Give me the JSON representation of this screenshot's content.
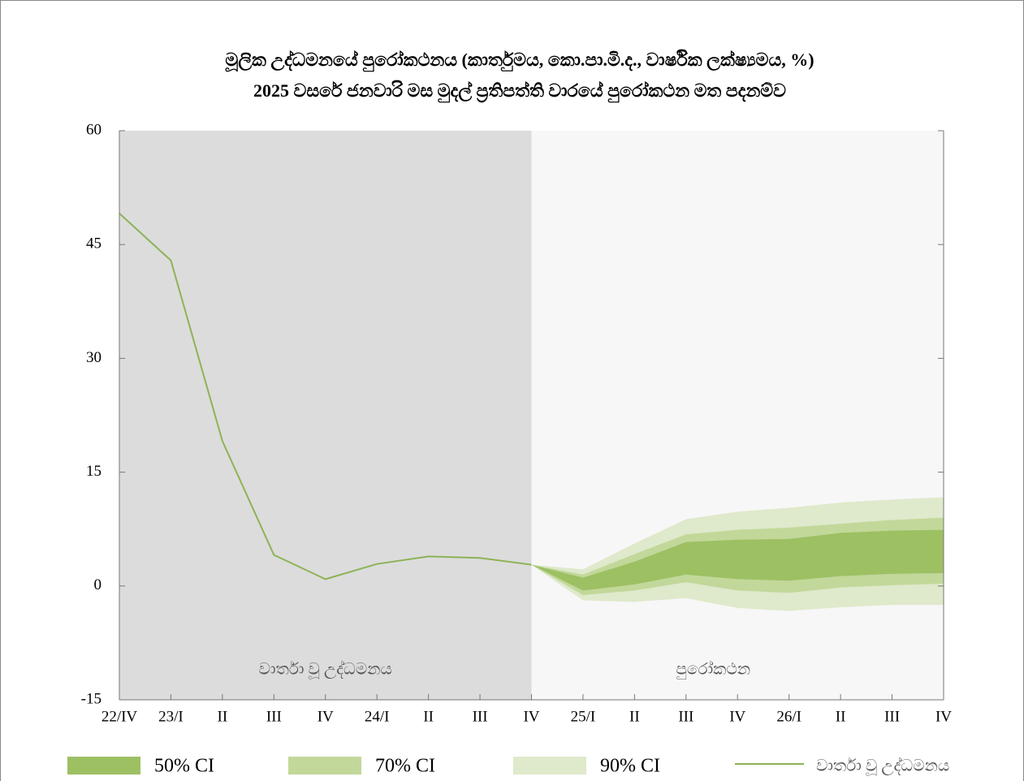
{
  "chart_data": {
    "type": "fan",
    "title": [
      "මූලික උද්ධමනයේ පුරෝකථනය (කාර්තුමය, කො.පා.මි.ද., වාර්ෂික ලක්ෂ්‍යමය, %)",
      "2025 වසරේ ජනවාරි මස මුදල් ප්‍රතිපත්ති වාරයේ පුරෝකථන මත පදනම්ව"
    ],
    "annotations": [
      "වාර්තා වූ උද්ධමනය",
      "පුරෝකථන"
    ],
    "categories": [
      "22/IV",
      "23/I",
      "II",
      "III",
      "IV",
      "24/I",
      "II",
      "III",
      "IV",
      "25/I",
      "II",
      "III",
      "IV",
      "26/I",
      "II",
      "III",
      "IV"
    ],
    "ylim": [
      -15,
      60
    ],
    "yticks": [
      -15,
      0,
      15,
      30,
      45,
      60
    ],
    "bands": [
      {
        "name": "50% CI",
        "color": "#9dc063",
        "lower": [
          null,
          null,
          null,
          null,
          null,
          null,
          null,
          null,
          2.8,
          -0.6,
          0.2,
          1.5,
          0.9,
          0.7,
          1.3,
          1.6,
          1.7
        ],
        "upper": [
          null,
          null,
          null,
          null,
          null,
          null,
          null,
          null,
          2.8,
          1.1,
          3.2,
          5.8,
          6.1,
          6.2,
          7.0,
          7.3,
          7.4
        ]
      },
      {
        "name": "70% CI",
        "color": "#c2d89a",
        "lower": [
          null,
          null,
          null,
          null,
          null,
          null,
          null,
          null,
          2.8,
          -1.2,
          -0.6,
          0.5,
          -0.6,
          -0.9,
          -0.2,
          0.1,
          0.3
        ],
        "upper": [
          null,
          null,
          null,
          null,
          null,
          null,
          null,
          null,
          2.8,
          1.5,
          4.2,
          6.8,
          7.4,
          7.7,
          8.2,
          8.7,
          9.0
        ]
      },
      {
        "name": "90% CI",
        "color": "#dfe9cb",
        "lower": [
          null,
          null,
          null,
          null,
          null,
          null,
          null,
          null,
          2.8,
          -1.9,
          -2.1,
          -1.6,
          -2.9,
          -3.3,
          -2.8,
          -2.5,
          -2.5
        ],
        "upper": [
          null,
          null,
          null,
          null,
          null,
          null,
          null,
          null,
          2.8,
          2.2,
          5.6,
          8.8,
          9.8,
          10.3,
          11.0,
          11.4,
          11.7
        ]
      }
    ],
    "series": [
      {
        "name": "වාර්තා වූ උද්ධමනය",
        "color": "#8db356",
        "values": [
          49.1,
          42.9,
          19.1,
          4.1,
          0.9,
          2.9,
          3.9,
          3.7,
          2.8,
          null,
          null,
          null,
          null,
          null,
          null,
          null,
          null
        ]
      }
    ]
  }
}
